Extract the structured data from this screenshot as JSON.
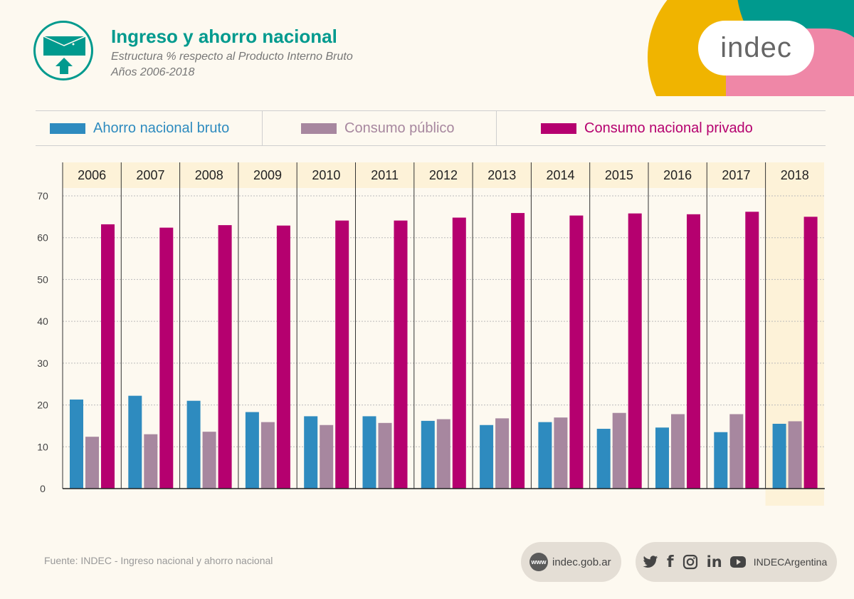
{
  "header": {
    "title": "Ingreso y ahorro nacional",
    "subtitle": "Estructura % respecto al Producto Interno Bruto",
    "period": "Años 2006-2018",
    "logo_text": "indec"
  },
  "colors": {
    "ahorro": "#2e8bbf",
    "consumo_publico": "#a7879f",
    "consumo_privado": "#b5006f",
    "title": "#009a8e",
    "corner_yellow": "#f0b400",
    "corner_teal": "#009a8e",
    "corner_pink": "#ef87a7"
  },
  "chart_data": {
    "type": "bar",
    "categories": [
      "2006",
      "2007",
      "2008",
      "2009",
      "2010",
      "2011",
      "2012",
      "2013",
      "2014",
      "2015",
      "2016",
      "2017",
      "2018"
    ],
    "series": [
      {
        "name": "Ahorro nacional bruto",
        "values": [
          21.3,
          22.2,
          21.0,
          18.3,
          17.3,
          17.3,
          16.2,
          15.2,
          15.9,
          14.3,
          14.6,
          13.5,
          15.5
        ]
      },
      {
        "name": "Consumo público",
        "values": [
          12.4,
          13.0,
          13.6,
          15.9,
          15.2,
          15.7,
          16.6,
          16.8,
          17.0,
          18.1,
          17.8,
          17.8,
          16.1
        ]
      },
      {
        "name": "Consumo nacional privado",
        "values": [
          63.2,
          62.4,
          63.0,
          62.9,
          64.1,
          64.1,
          64.8,
          65.9,
          65.3,
          65.8,
          65.6,
          66.2,
          65.0
        ]
      }
    ],
    "ylim": [
      0,
      70
    ],
    "yticks": [
      0,
      10,
      20,
      30,
      40,
      50,
      60,
      70
    ],
    "grid": true,
    "legend_position": "top",
    "highlight_category": "2018"
  },
  "footer": {
    "source": "Fuente: INDEC - Ingreso nacional y ahorro nacional",
    "www": "www",
    "website": "indec.gob.ar",
    "social_handle": "INDECArgentina",
    "social_icons": [
      "twitter-icon",
      "facebook-icon",
      "instagram-icon",
      "linkedin-icon",
      "youtube-icon"
    ]
  }
}
